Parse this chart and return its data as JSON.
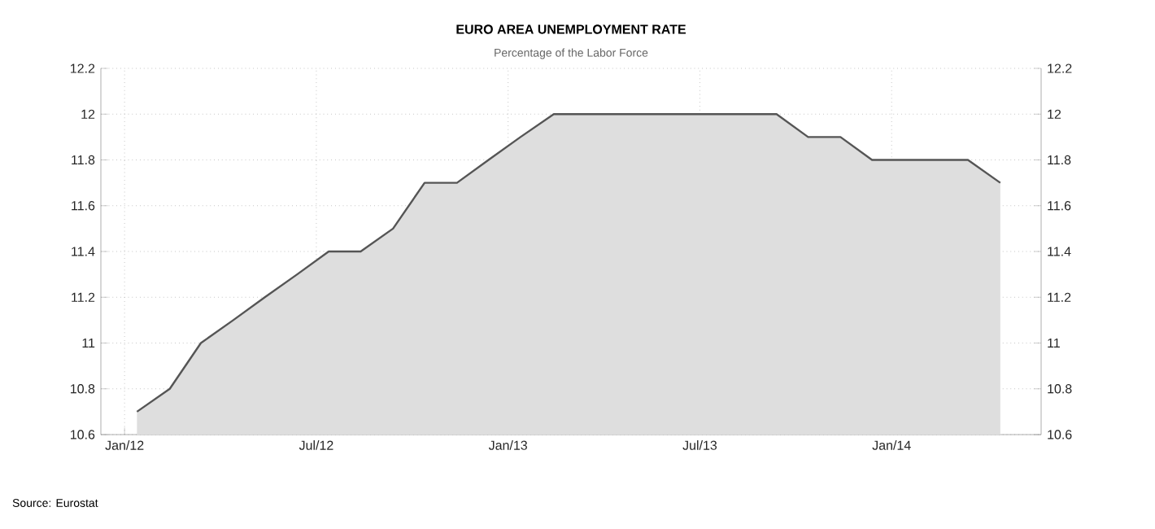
{
  "chart_data": {
    "type": "area",
    "title": "EURO AREA UNEMPLOYMENT RATE",
    "subtitle": "Percentage of the Labor Force",
    "annotations": [
      "Source: Eurostat"
    ],
    "x": [
      "2012-01-13",
      "2012-02-13",
      "2012-03-13",
      "2012-04-13",
      "2012-05-13",
      "2012-06-13",
      "2012-07-13",
      "2012-08-13",
      "2012-09-13",
      "2012-10-13",
      "2012-11-13",
      "2012-12-13",
      "2013-01-13",
      "2013-02-13",
      "2013-03-13",
      "2013-04-13",
      "2013-05-13",
      "2013-06-13",
      "2013-07-13",
      "2013-08-13",
      "2013-09-13",
      "2013-10-13",
      "2013-11-13",
      "2013-12-13",
      "2014-01-13",
      "2014-02-13",
      "2014-03-13",
      "2014-04-13"
    ],
    "series": [
      {
        "color": "#555555",
        "values": [
          10.7,
          10.8,
          11.0,
          11.1,
          11.2,
          11.3,
          11.4,
          11.4,
          11.5,
          11.7,
          11.7,
          11.8,
          11.9,
          12.0,
          12.0,
          12.0,
          12.0,
          12.0,
          12.0,
          12.0,
          12.0,
          11.9,
          11.9,
          11.8,
          11.8,
          11.8,
          11.8,
          11.7
        ]
      }
    ],
    "xlim": [
      "2011-12-09",
      "2014-05-22"
    ],
    "xticks": [
      {
        "value": "2012-01-01",
        "label": "Jan/12"
      },
      {
        "value": "2012-07-01",
        "label": "Jul/12"
      },
      {
        "value": "2013-01-01",
        "label": "Jan/13"
      },
      {
        "value": "2013-07-01",
        "label": "Jul/13"
      },
      {
        "value": "2014-01-01",
        "label": "Jan/14"
      }
    ],
    "ylim": [
      10.6,
      12.2
    ],
    "yticks": [
      10.6,
      10.8,
      11,
      11.2,
      11.4,
      11.6,
      11.8,
      12,
      12.2
    ],
    "y2lim": [
      10.6,
      12.2
    ],
    "y2ticks": [
      10.6,
      10.8,
      11,
      11.2,
      11.4,
      11.6,
      11.8,
      12,
      12.2
    ],
    "grid": true
  }
}
